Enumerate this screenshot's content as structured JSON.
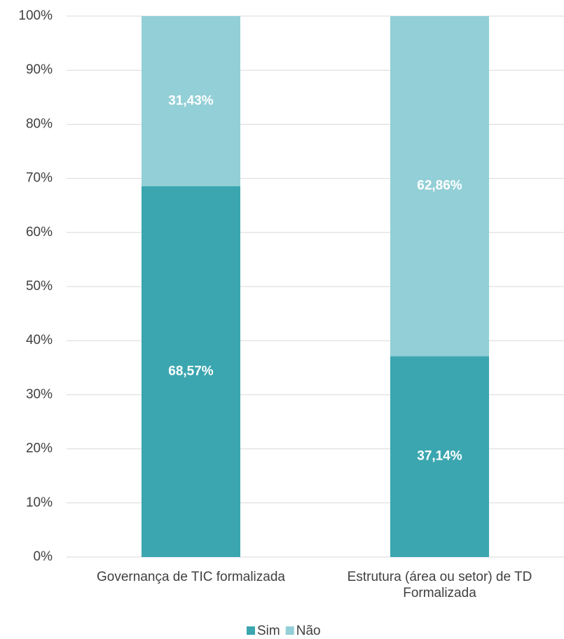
{
  "chart_data": {
    "type": "stacked_bar",
    "categories": [
      "Governança de TIC formalizada",
      "Estrutura (área ou setor) de TD Formalizada"
    ],
    "series": [
      {
        "name": "Sim",
        "color": "#3ba6b0",
        "values": [
          68.57,
          37.14
        ],
        "value_labels": [
          "68,57%",
          "37,14%"
        ]
      },
      {
        "name": "Não",
        "color": "#93cfd6",
        "values": [
          31.43,
          62.86
        ],
        "value_labels": [
          "31,43%",
          "62,86%"
        ]
      }
    ],
    "ylim": [
      0,
      100
    ],
    "yticks": [
      {
        "value": 0,
        "label": "0%"
      },
      {
        "value": 10,
        "label": "10%"
      },
      {
        "value": 20,
        "label": "20%"
      },
      {
        "value": 30,
        "label": "30%"
      },
      {
        "value": 40,
        "label": "40%"
      },
      {
        "value": 50,
        "label": "50%"
      },
      {
        "value": 60,
        "label": "60%"
      },
      {
        "value": 70,
        "label": "70%"
      },
      {
        "value": 80,
        "label": "80%"
      },
      {
        "value": 90,
        "label": "90%"
      },
      {
        "value": 100,
        "label": "100%"
      }
    ],
    "grid": true,
    "legend": "bottom"
  }
}
